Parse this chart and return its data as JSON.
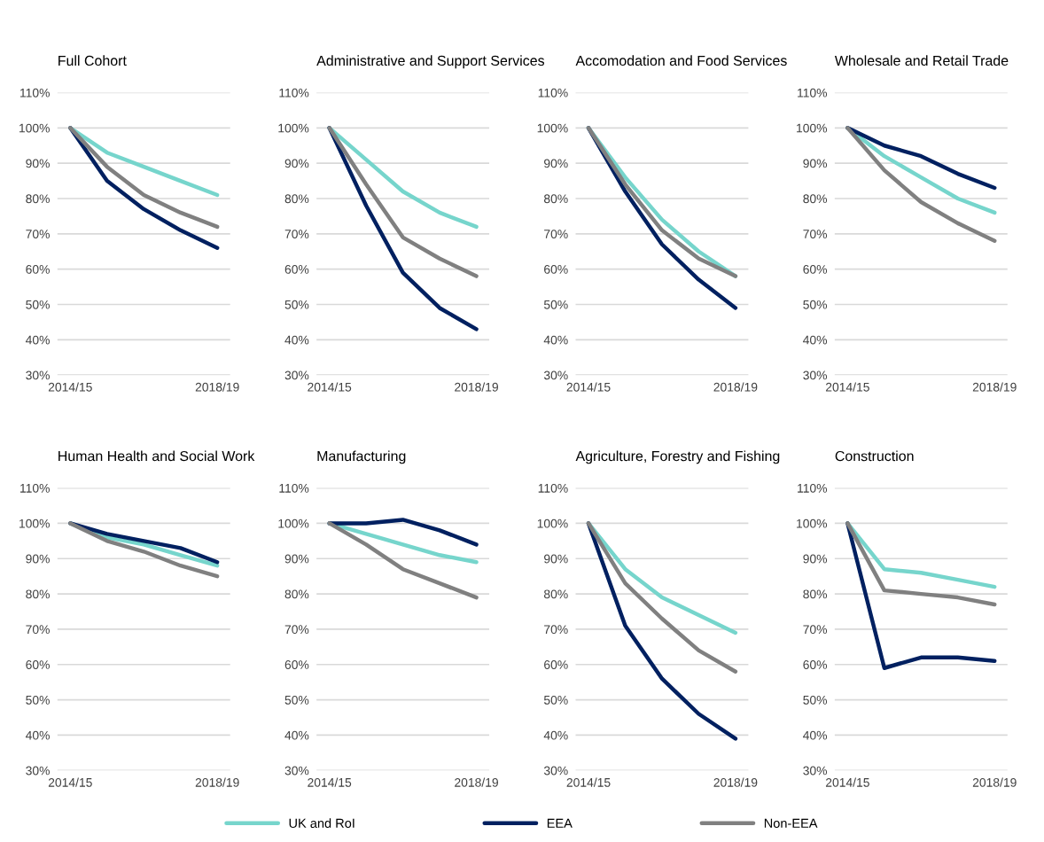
{
  "chart_data": [
    {
      "type": "line",
      "title": "Full Cohort",
      "categories": [
        "2014/15",
        null,
        null,
        null,
        "2018/19"
      ],
      "ylim": [
        30,
        110
      ],
      "yticks": [
        {
          "value": 30,
          "label": "30%"
        },
        {
          "value": 40,
          "label": "40%"
        },
        {
          "value": 50,
          "label": "50%"
        },
        {
          "value": 60,
          "label": "60%"
        },
        {
          "value": 70,
          "label": "70%"
        },
        {
          "value": 80,
          "label": "80%"
        },
        {
          "value": 90,
          "label": "90%"
        },
        {
          "value": 100,
          "label": "100%"
        },
        {
          "value": 110,
          "label": "110%"
        }
      ],
      "grid": "y",
      "legend": "bottom",
      "series": [
        {
          "name": "UK and RoI",
          "color": "#76d5cc",
          "values": [
            100,
            93,
            89,
            85,
            81
          ]
        },
        {
          "name": "EEA",
          "color": "#002060",
          "values": [
            100,
            85,
            77,
            71,
            66
          ]
        },
        {
          "name": "Non-EEA",
          "color": "#808080",
          "values": [
            100,
            89,
            81,
            76,
            72
          ]
        }
      ]
    },
    {
      "type": "line",
      "title": "Administrative and Support Services",
      "categories": [
        "2014/15",
        null,
        null,
        null,
        "2018/19"
      ],
      "ylim": [
        30,
        110
      ],
      "yticks": [
        {
          "value": 30,
          "label": "30%"
        },
        {
          "value": 40,
          "label": "40%"
        },
        {
          "value": 50,
          "label": "50%"
        },
        {
          "value": 60,
          "label": "60%"
        },
        {
          "value": 70,
          "label": "70%"
        },
        {
          "value": 80,
          "label": "80%"
        },
        {
          "value": 90,
          "label": "90%"
        },
        {
          "value": 100,
          "label": "100%"
        },
        {
          "value": 110,
          "label": "110%"
        }
      ],
      "grid": "y",
      "series": [
        {
          "color": "#76d5cc",
          "values": [
            100,
            91,
            82,
            76,
            72
          ]
        },
        {
          "color": "#002060",
          "values": [
            100,
            78,
            59,
            49,
            43
          ]
        },
        {
          "color": "#808080",
          "values": [
            100,
            84,
            69,
            63,
            58
          ]
        }
      ]
    },
    {
      "type": "line",
      "title": "Accomodation and Food Services",
      "categories": [
        "2014/15",
        null,
        null,
        null,
        "2018/19"
      ],
      "ylim": [
        30,
        110
      ],
      "yticks": [
        {
          "value": 30,
          "label": "30%"
        },
        {
          "value": 40,
          "label": "40%"
        },
        {
          "value": 50,
          "label": "50%"
        },
        {
          "value": 60,
          "label": "60%"
        },
        {
          "value": 70,
          "label": "70%"
        },
        {
          "value": 80,
          "label": "80%"
        },
        {
          "value": 90,
          "label": "90%"
        },
        {
          "value": 100,
          "label": "100%"
        },
        {
          "value": 110,
          "label": "110%"
        }
      ],
      "grid": "y",
      "series": [
        {
          "color": "#76d5cc",
          "values": [
            100,
            86,
            74,
            65,
            58
          ]
        },
        {
          "color": "#002060",
          "values": [
            100,
            82,
            67,
            57,
            49
          ]
        },
        {
          "color": "#808080",
          "values": [
            100,
            84,
            71,
            63,
            58
          ]
        }
      ]
    },
    {
      "type": "line",
      "title": "Wholesale and Retail Trade",
      "categories": [
        "2014/15",
        null,
        null,
        null,
        "2018/19"
      ],
      "ylim": [
        30,
        110
      ],
      "yticks": [
        {
          "value": 30,
          "label": "30%"
        },
        {
          "value": 40,
          "label": "40%"
        },
        {
          "value": 50,
          "label": "50%"
        },
        {
          "value": 60,
          "label": "60%"
        },
        {
          "value": 70,
          "label": "70%"
        },
        {
          "value": 80,
          "label": "80%"
        },
        {
          "value": 90,
          "label": "90%"
        },
        {
          "value": 100,
          "label": "100%"
        },
        {
          "value": 110,
          "label": "110%"
        }
      ],
      "grid": "y",
      "series": [
        {
          "color": "#76d5cc",
          "values": [
            100,
            92,
            86,
            80,
            76
          ]
        },
        {
          "color": "#002060",
          "values": [
            100,
            95,
            92,
            87,
            83
          ]
        },
        {
          "color": "#808080",
          "values": [
            100,
            88,
            79,
            73,
            68
          ]
        }
      ]
    },
    {
      "type": "line",
      "title": "Human Health and Social Work",
      "categories": [
        "2014/15",
        null,
        null,
        null,
        "2018/19"
      ],
      "ylim": [
        30,
        110
      ],
      "yticks": [
        {
          "value": 30,
          "label": "30%"
        },
        {
          "value": 40,
          "label": "40%"
        },
        {
          "value": 50,
          "label": "50%"
        },
        {
          "value": 60,
          "label": "60%"
        },
        {
          "value": 70,
          "label": "70%"
        },
        {
          "value": 80,
          "label": "80%"
        },
        {
          "value": 90,
          "label": "90%"
        },
        {
          "value": 100,
          "label": "100%"
        },
        {
          "value": 110,
          "label": "110%"
        }
      ],
      "grid": "y",
      "series": [
        {
          "color": "#76d5cc",
          "values": [
            100,
            96,
            94,
            91,
            88
          ]
        },
        {
          "color": "#002060",
          "values": [
            100,
            97,
            95,
            93,
            89
          ]
        },
        {
          "color": "#808080",
          "values": [
            100,
            95,
            92,
            88,
            85
          ]
        }
      ]
    },
    {
      "type": "line",
      "title": "Manufacturing",
      "categories": [
        "2014/15",
        null,
        null,
        null,
        "2018/19"
      ],
      "ylim": [
        30,
        110
      ],
      "yticks": [
        {
          "value": 30,
          "label": "30%"
        },
        {
          "value": 40,
          "label": "40%"
        },
        {
          "value": 50,
          "label": "50%"
        },
        {
          "value": 60,
          "label": "60%"
        },
        {
          "value": 70,
          "label": "70%"
        },
        {
          "value": 80,
          "label": "80%"
        },
        {
          "value": 90,
          "label": "90%"
        },
        {
          "value": 100,
          "label": "100%"
        },
        {
          "value": 110,
          "label": "110%"
        }
      ],
      "grid": "y",
      "series": [
        {
          "color": "#76d5cc",
          "values": [
            100,
            97,
            94,
            91,
            89
          ]
        },
        {
          "color": "#002060",
          "values": [
            100,
            100,
            101,
            98,
            94
          ]
        },
        {
          "color": "#808080",
          "values": [
            100,
            94,
            87,
            83,
            79
          ]
        }
      ]
    },
    {
      "type": "line",
      "title": "Agriculture, Forestry and Fishing",
      "categories": [
        "2014/15",
        null,
        null,
        null,
        "2018/19"
      ],
      "ylim": [
        30,
        110
      ],
      "yticks": [
        {
          "value": 30,
          "label": "30%"
        },
        {
          "value": 40,
          "label": "40%"
        },
        {
          "value": 50,
          "label": "50%"
        },
        {
          "value": 60,
          "label": "60%"
        },
        {
          "value": 70,
          "label": "70%"
        },
        {
          "value": 80,
          "label": "80%"
        },
        {
          "value": 90,
          "label": "90%"
        },
        {
          "value": 100,
          "label": "100%"
        },
        {
          "value": 110,
          "label": "110%"
        }
      ],
      "grid": "y",
      "series": [
        {
          "color": "#76d5cc",
          "values": [
            100,
            87,
            79,
            74,
            69
          ]
        },
        {
          "color": "#002060",
          "values": [
            100,
            71,
            56,
            46,
            39
          ]
        },
        {
          "color": "#808080",
          "values": [
            100,
            83,
            73,
            64,
            58
          ]
        }
      ]
    },
    {
      "type": "line",
      "title": "Construction",
      "categories": [
        "2014/15",
        null,
        null,
        null,
        "2018/19"
      ],
      "ylim": [
        30,
        110
      ],
      "yticks": [
        {
          "value": 30,
          "label": "30%"
        },
        {
          "value": 40,
          "label": "40%"
        },
        {
          "value": 50,
          "label": "50%"
        },
        {
          "value": 60,
          "label": "60%"
        },
        {
          "value": 70,
          "label": "70%"
        },
        {
          "value": 80,
          "label": "80%"
        },
        {
          "value": 90,
          "label": "90%"
        },
        {
          "value": 100,
          "label": "100%"
        },
        {
          "value": 110,
          "label": "110%"
        }
      ],
      "grid": "y",
      "series": [
        {
          "color": "#76d5cc",
          "values": [
            100,
            87,
            86,
            84,
            82
          ]
        },
        {
          "color": "#002060",
          "values": [
            100,
            59,
            62,
            62,
            61
          ]
        },
        {
          "color": "#808080",
          "values": [
            100,
            81,
            80,
            79,
            77
          ]
        }
      ]
    }
  ]
}
